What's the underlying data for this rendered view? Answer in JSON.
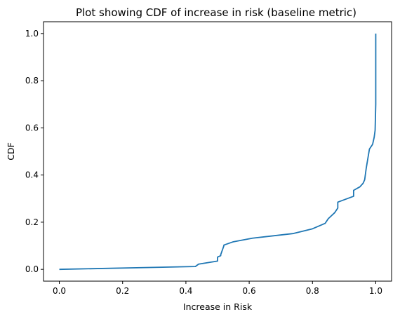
{
  "chart_data": {
    "type": "line",
    "title": "Plot showing CDF of increase in risk (baseline metric)",
    "xlabel": "Increase in Risk",
    "ylabel": "CDF",
    "xlim": [
      -0.05,
      1.05
    ],
    "ylim": [
      -0.05,
      1.05
    ],
    "xticks": [
      "0.0",
      "0.2",
      "0.4",
      "0.6",
      "0.8",
      "1.0"
    ],
    "yticks": [
      "0.0",
      "0.2",
      "0.4",
      "0.6",
      "0.8",
      "1.0"
    ],
    "grid": false,
    "line_color": "#1f77b4",
    "series": [
      {
        "x": [
          0.0,
          0.43,
          0.44,
          0.5,
          0.5,
          0.51,
          0.51,
          0.52,
          0.52,
          0.55,
          0.61,
          0.74,
          0.8,
          0.84,
          0.85,
          0.87,
          0.88,
          0.88,
          0.93,
          0.93,
          0.95,
          0.96,
          0.965,
          0.97,
          0.975,
          0.98,
          0.99,
          0.995,
          0.998,
          1.0,
          1.0
        ],
        "y": [
          0.0,
          0.012,
          0.022,
          0.035,
          0.052,
          0.058,
          0.062,
          0.1,
          0.103,
          0.117,
          0.132,
          0.152,
          0.172,
          0.195,
          0.215,
          0.24,
          0.26,
          0.285,
          0.31,
          0.335,
          0.35,
          0.365,
          0.38,
          0.43,
          0.47,
          0.51,
          0.53,
          0.56,
          0.59,
          0.7,
          1.0
        ]
      }
    ]
  }
}
